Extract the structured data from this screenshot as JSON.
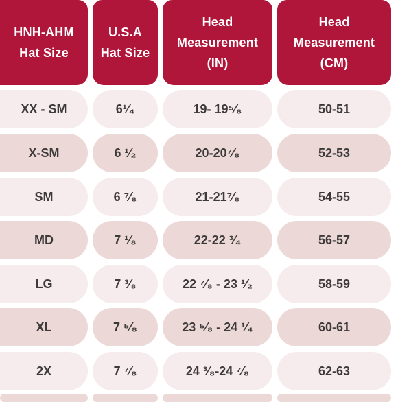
{
  "headers": [
    "HNH-AHM\nHat Size",
    "U.S.A\nHat Size",
    "Head\nMeasurement\n(IN)",
    "Head\nMeasurement\n(CM)"
  ],
  "rows": [
    {
      "hnh": "XX - SM",
      "usa": "6¹⁄₄",
      "inches": "19- 19⁵⁄₈",
      "cm": "50-51"
    },
    {
      "hnh": "X-SM",
      "usa": "6 ¹⁄₂",
      "inches": "20-20⁷⁄₈",
      "cm": "52-53"
    },
    {
      "hnh": "SM",
      "usa": "6 ⁷⁄₈",
      "inches": "21-21⁷⁄₈",
      "cm": "54-55"
    },
    {
      "hnh": "MD",
      "usa": "7 ¹⁄₈",
      "inches": "22-22 ³⁄₄",
      "cm": "56-57"
    },
    {
      "hnh": "LG",
      "usa": "7 ³⁄₈",
      "inches": "22 ⁷⁄₈ - 23 ¹⁄₂",
      "cm": "58-59"
    },
    {
      "hnh": "XL",
      "usa": "7 ⁵⁄₈",
      "inches": "23 ⁵⁄₈ - 24 ¹⁄₄",
      "cm": "60-61"
    },
    {
      "hnh": "2X",
      "usa": "7 ⁷⁄₈",
      "inches": "24 ³⁄₈-24 ⁷⁄₈",
      "cm": "62-63"
    }
  ],
  "colors": {
    "header_bg": "#b0153a",
    "header_text": "#ffffff",
    "row_light": "#f7eced",
    "row_dark": "#ecd9d7",
    "cell_text": "#3d3a3a"
  }
}
